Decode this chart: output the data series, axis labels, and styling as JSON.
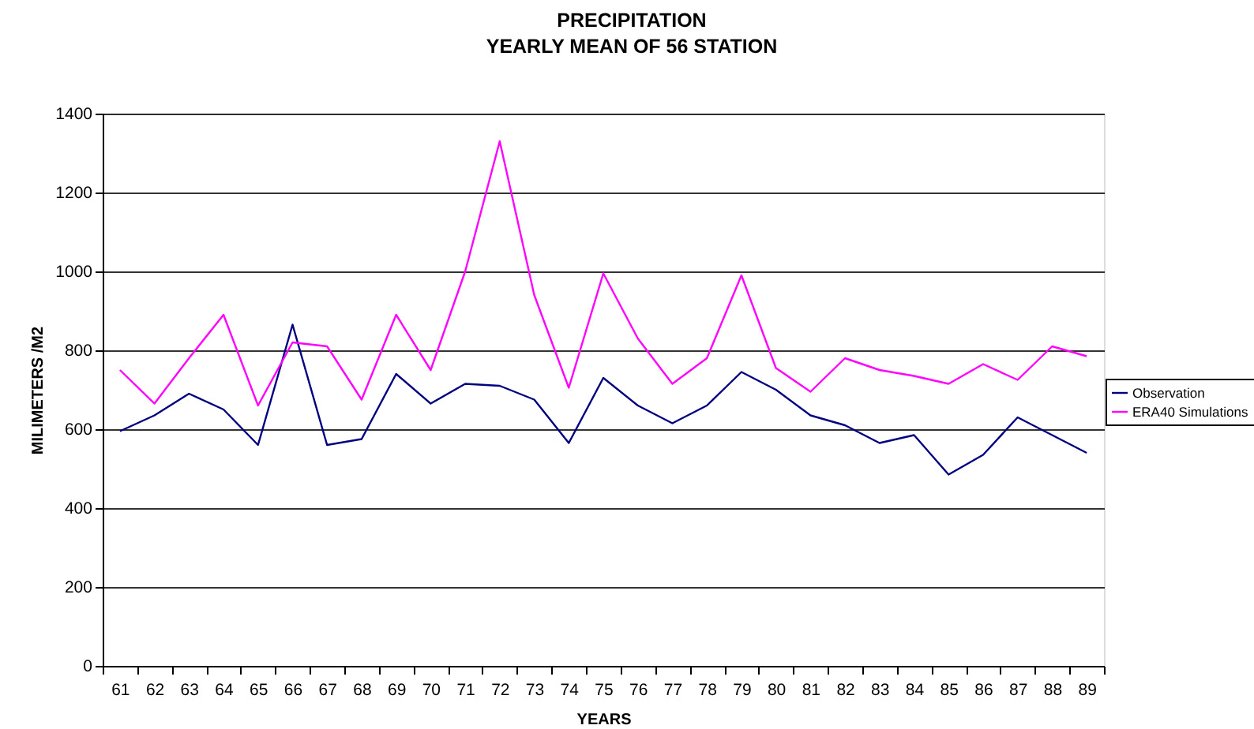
{
  "chart_data": {
    "type": "line",
    "title": "PRECIPITATION",
    "subtitle": "YEARLY MEAN OF 56 STATION",
    "xlabel": "YEARS",
    "ylabel": "MILIMETERS /M2",
    "categories": [
      "61",
      "62",
      "63",
      "64",
      "65",
      "66",
      "67",
      "68",
      "69",
      "70",
      "71",
      "72",
      "73",
      "74",
      "75",
      "76",
      "77",
      "78",
      "79",
      "80",
      "81",
      "82",
      "83",
      "84",
      "85",
      "86",
      "87",
      "88",
      "89"
    ],
    "series": [
      {
        "name": "Observation",
        "color": "#000080",
        "values": [
          595,
          635,
          690,
          650,
          560,
          865,
          560,
          575,
          740,
          665,
          715,
          710,
          675,
          565,
          730,
          660,
          615,
          660,
          745,
          700,
          635,
          610,
          565,
          585,
          485,
          535,
          630,
          585,
          540
        ]
      },
      {
        "name": "ERA40 Simulations",
        "color": "#ff00ff",
        "values": [
          750,
          665,
          780,
          890,
          660,
          820,
          810,
          675,
          890,
          750,
          1000,
          1330,
          940,
          705,
          995,
          830,
          715,
          780,
          990,
          755,
          695,
          780,
          750,
          735,
          715,
          765,
          725,
          810,
          785
        ]
      }
    ],
    "ylim": [
      0,
      1400
    ],
    "yticks": [
      0,
      200,
      400,
      600,
      800,
      1000,
      1200,
      1400
    ],
    "grid": "y",
    "legend": "right"
  }
}
